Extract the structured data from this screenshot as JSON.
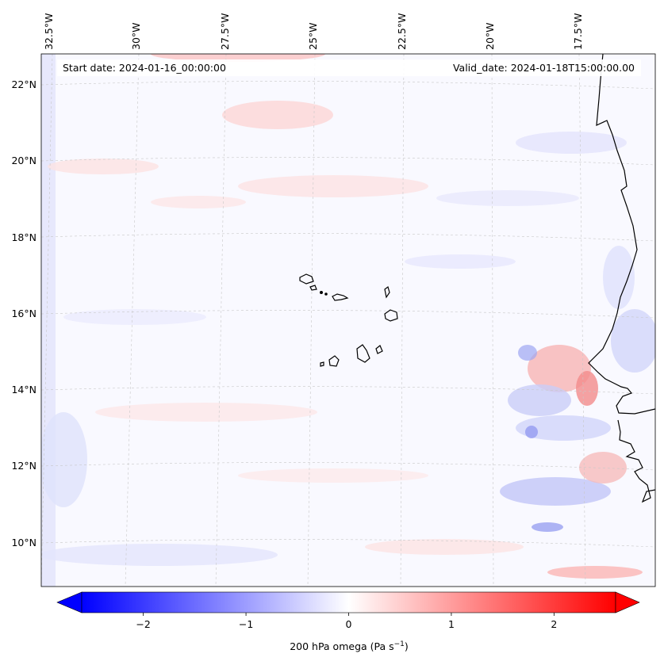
{
  "map": {
    "start_date_label": "Start date: 2024-01-16_00:00:00",
    "valid_date_label": "Valid_date: 2024-01-18T15:00:00.00",
    "lon_labels": [
      "32.5°W",
      "30°W",
      "27.5°W",
      "25°W",
      "22.5°W",
      "20°W",
      "17.5°W"
    ],
    "lat_labels": [
      "22°N",
      "20°N",
      "18°N",
      "16°N",
      "14°N",
      "12°N",
      "10°N"
    ],
    "field": "200 hPa omega",
    "colors": {
      "negative": "#0000ff",
      "neutral": "#ffffff",
      "positive": "#ff0000",
      "coast": "#000000",
      "grid": "#c8c8c8"
    }
  },
  "colorbar": {
    "label": "200 hPa omega (Pa s",
    "label_exp": "−1",
    "label_close": ")",
    "range": [
      -2.6,
      2.6
    ],
    "ticks": [
      {
        "value": -2,
        "label": "−2"
      },
      {
        "value": -1,
        "label": "−1"
      },
      {
        "value": 0,
        "label": "0"
      },
      {
        "value": 1,
        "label": "1"
      },
      {
        "value": 2,
        "label": "2"
      }
    ],
    "extend": "both",
    "colormap": "bwr"
  }
}
